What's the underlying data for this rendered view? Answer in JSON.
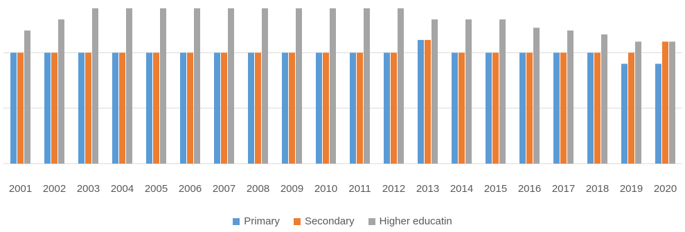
{
  "chart_data": {
    "type": "bar",
    "title": "",
    "xlabel": "",
    "ylabel": "",
    "ylim": [
      0,
      3
    ],
    "grid": true,
    "legend_position": "bottom",
    "categories": [
      "2001",
      "2002",
      "2003",
      "2004",
      "2005",
      "2006",
      "2007",
      "2008",
      "2009",
      "2010",
      "2011",
      "2012",
      "2013",
      "2014",
      "2015",
      "2016",
      "2017",
      "2018",
      "2019",
      "2020"
    ],
    "series": [
      {
        "name": "Primary",
        "color": "#5B9BD5",
        "values": [
          2,
          2,
          2,
          2,
          2,
          2,
          2,
          2,
          2,
          2,
          2,
          2,
          2.23,
          2,
          2,
          2,
          2,
          2,
          1.8,
          1.8
        ]
      },
      {
        "name": "Secondary",
        "color": "#ED7D31",
        "values": [
          2,
          2,
          2,
          2,
          2,
          2,
          2,
          2,
          2,
          2,
          2,
          2,
          2.23,
          2,
          2,
          2,
          2,
          2,
          2,
          2.2
        ]
      },
      {
        "name": "Higher educatin",
        "color": "#A5A5A5",
        "values": [
          2.4,
          2.6,
          2.8,
          2.8,
          2.8,
          2.8,
          2.8,
          2.8,
          2.8,
          2.8,
          2.8,
          2.8,
          2.6,
          2.6,
          2.6,
          2.45,
          2.4,
          2.33,
          2.2,
          2.2
        ]
      }
    ]
  }
}
